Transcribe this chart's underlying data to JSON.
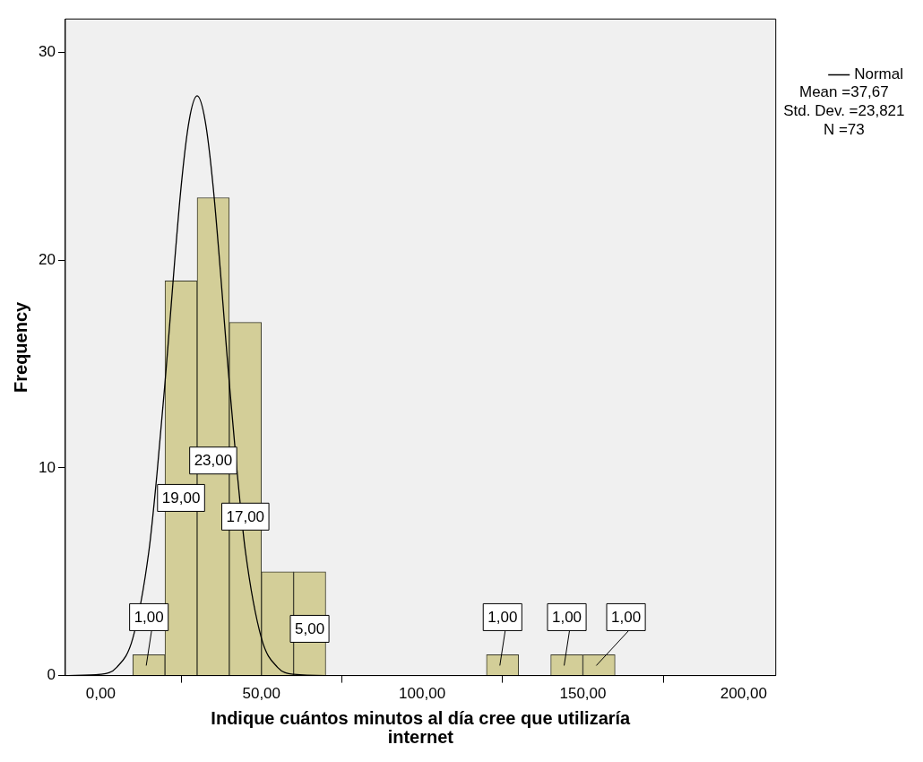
{
  "chart_data": {
    "type": "histogram",
    "xlabel": "Indique cuántos minutos al día cree que utilizaría internet",
    "ylabel": "Frequency",
    "bins": [
      10,
      20,
      30,
      40,
      50,
      60,
      70,
      80,
      90,
      100,
      110,
      120,
      130,
      140,
      150,
      160
    ],
    "values": [
      1,
      19,
      23,
      17,
      5,
      5,
      0,
      0,
      0,
      0,
      0,
      1,
      0,
      1,
      1
    ],
    "value_labels": [
      "1,00",
      "19,00",
      "23,00",
      "17,00",
      null,
      "5,00",
      null,
      null,
      null,
      null,
      null,
      "1,00",
      null,
      "1,00",
      "1,00"
    ],
    "color": "#d3ce98",
    "series": [
      {
        "name": "Normal",
        "type": "line",
        "color": "#000000",
        "x": [
          -10,
          0,
          5,
          10,
          15,
          17.5,
          20,
          25,
          27.5,
          30,
          32.5,
          35,
          40,
          42.5,
          45,
          50,
          55,
          60,
          70,
          75
        ],
        "values": [
          0,
          0.06,
          0.4,
          1.8,
          6,
          9.7,
          14.1,
          23.5,
          26.7,
          27.9,
          26.7,
          23.5,
          14.1,
          9.7,
          6,
          1.8,
          0.4,
          0.06,
          0,
          0
        ]
      }
    ],
    "xlim": [
      -11,
      210
    ],
    "xticks": [
      {
        "value": 0,
        "label": "0,00"
      },
      {
        "value": 50,
        "label": "50,00"
      },
      {
        "value": 100,
        "label": "100,00"
      },
      {
        "value": 150,
        "label": "150,00"
      },
      {
        "value": 200,
        "label": "200,00"
      }
    ],
    "ylim": [
      0,
      31.6
    ],
    "yticks": [
      0,
      10,
      20,
      30
    ],
    "grid": false,
    "legend": "top right",
    "marker": "none",
    "line_style": "solid",
    "annotations": [
      "Mean =37,67",
      "Std. Dev. =23,821",
      "N =73"
    ]
  }
}
